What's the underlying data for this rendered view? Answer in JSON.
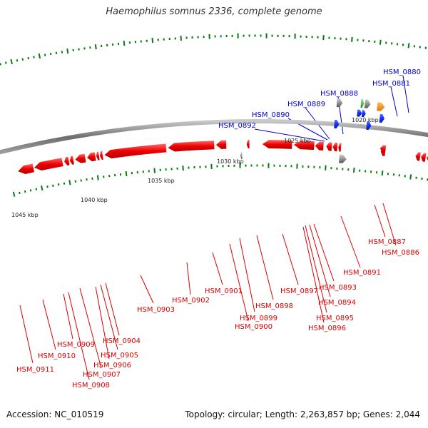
{
  "title": "Haemophilus somnus 2336, complete genome",
  "footer": {
    "accession": "Accession: NC_010519",
    "summary": "Topology: circular; Length: 2,263,857 bp; Genes: 2,044"
  },
  "colors": {
    "forward_label": "#0000cc",
    "reverse_label": "#dd0000",
    "forward_gene": "#1030ee",
    "reverse_gene": "#ee0000",
    "backbone": "#808080",
    "tick": "#0a7a0a",
    "rna_orange": "#f08c00",
    "rna_green": "#22bb22",
    "pseudo_gray": "#777777"
  },
  "scale_labels": [
    "1020 kbp",
    "1025 kbp",
    "1030 kbp",
    "1035 kbp",
    "1040 kbp",
    "1045 kbp"
  ],
  "forward_labels": [
    "HSM_0880",
    "HSM_0881",
    "HSM_0888",
    "HSM_0889",
    "HSM_0890",
    "HSM_0892"
  ],
  "reverse_labels": [
    "HSM_0886",
    "HSM_0887",
    "HSM_0891",
    "HSM_0893",
    "HSM_0894",
    "HSM_0895",
    "HSM_0896",
    "HSM_0897",
    "HSM_0898",
    "HSM_0899",
    "HSM_0900",
    "HSM_0901",
    "HSM_0902",
    "HSM_0903",
    "HSM_0904",
    "HSM_0905",
    "HSM_0906",
    "HSM_0907",
    "HSM_0908",
    "HSM_0909",
    "HSM_0910",
    "HSM_0911"
  ]
}
